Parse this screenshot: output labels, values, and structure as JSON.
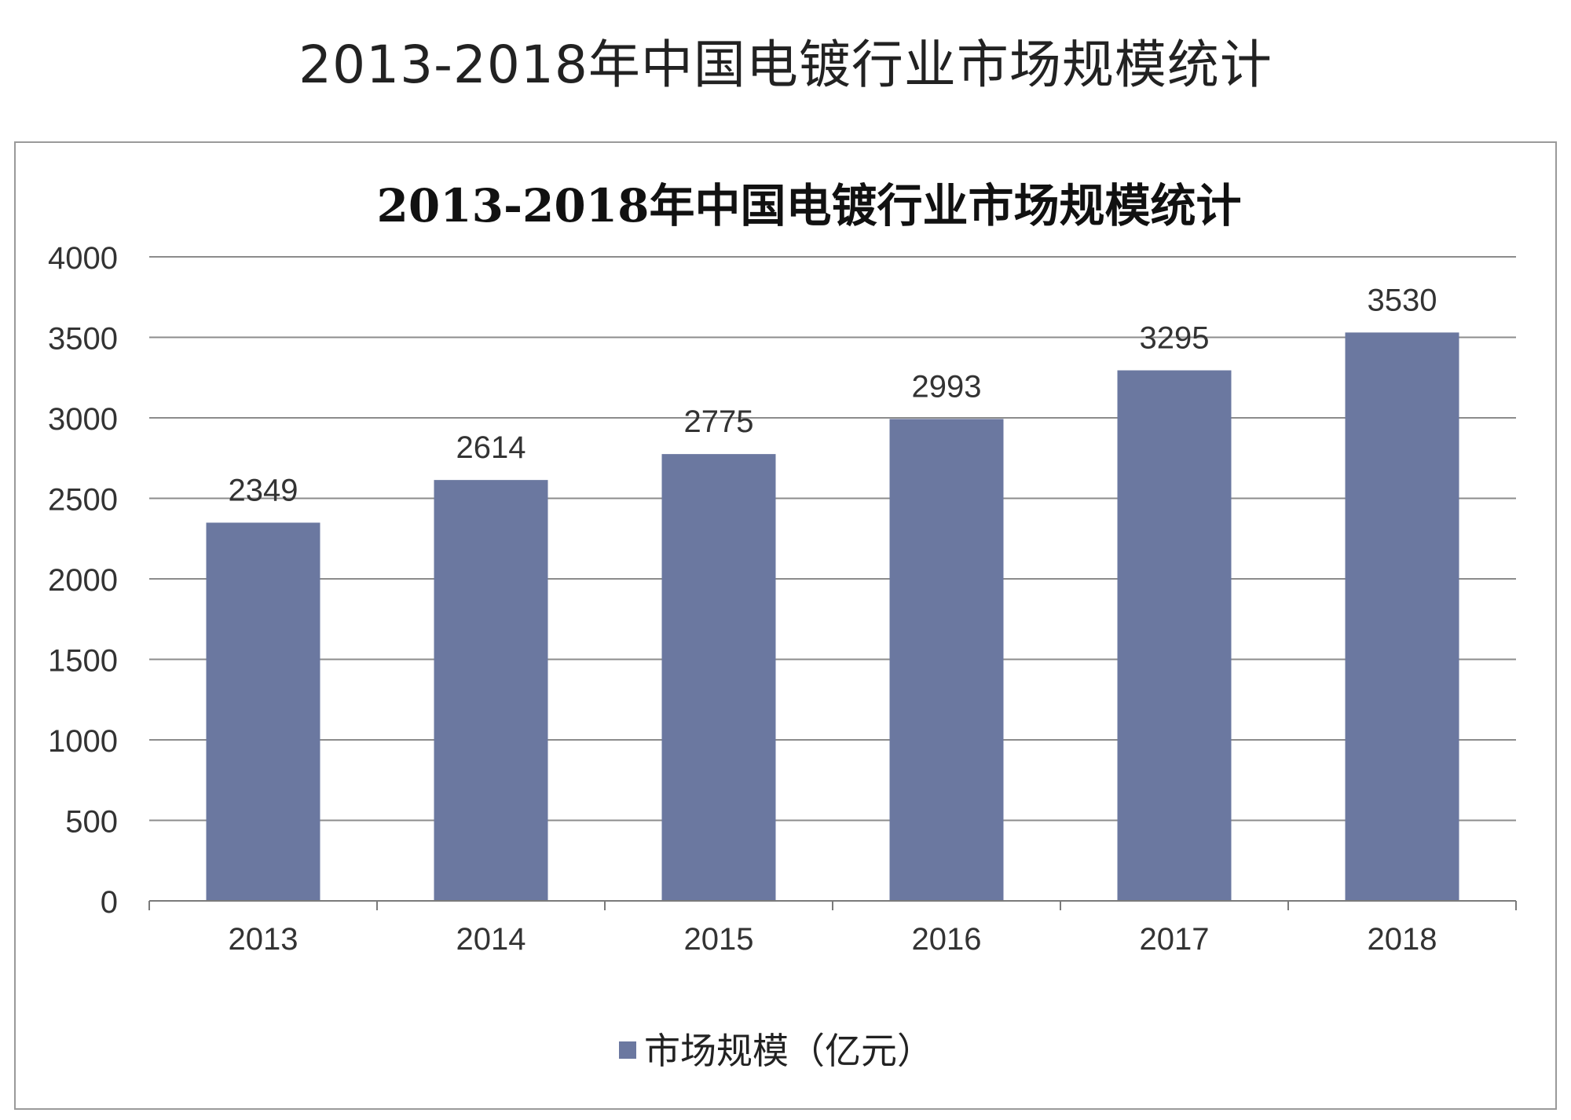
{
  "page_title": "2013-2018年中国电镀行业市场规模统计",
  "chart_data": {
    "type": "bar",
    "title": "2013-2018年中国电镀行业市场规模统计",
    "categories": [
      "2013",
      "2014",
      "2015",
      "2016",
      "2017",
      "2018"
    ],
    "series": [
      {
        "name": "市场规模（亿元）",
        "values": [
          2349,
          2614,
          2775,
          2993,
          3295,
          3530
        ]
      }
    ],
    "data_labels": [
      "2349",
      "2614",
      "2775",
      "2993",
      "3295",
      "3530"
    ],
    "y_ticks": [
      "0",
      "500",
      "1000",
      "1500",
      "2000",
      "2500",
      "3000",
      "3500",
      "4000"
    ],
    "ylim": [
      0,
      4000
    ],
    "xlabel": "",
    "ylabel": "",
    "grid": true,
    "legend_position": "bottom",
    "bar_color": "#6b78a0"
  }
}
